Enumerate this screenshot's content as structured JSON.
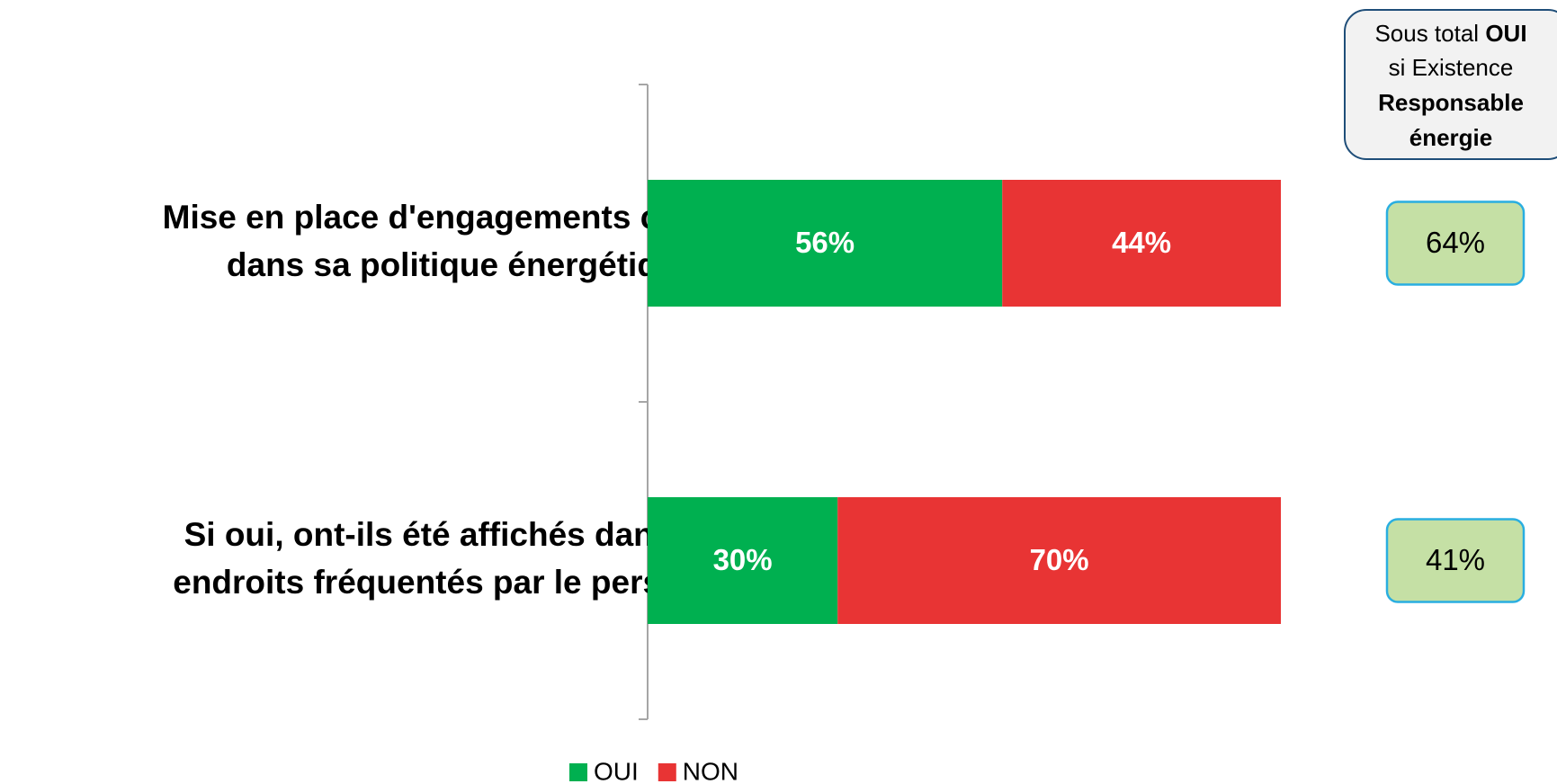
{
  "chart_data": {
    "type": "stacked_barh",
    "categories": [
      [
        "Mise en place d'engagements chiffrés",
        "dans sa politique énergétique"
      ],
      [
        "Si oui, ont-ils été affichés dans des",
        "endroits fréquentés par le personnel"
      ]
    ],
    "series": [
      {
        "name": "OUI",
        "color": "#00b050",
        "values": [
          56,
          30
        ],
        "value_labels": [
          "56%",
          "30%"
        ]
      },
      {
        "name": "NON",
        "color": "#e83434",
        "values": [
          44,
          70
        ],
        "value_labels": [
          "44%",
          "70%"
        ]
      }
    ],
    "xlim": [
      0,
      100
    ],
    "legend": "bottom",
    "subtotal": {
      "title": [
        "Sous total",
        "OUI",
        "si Existence",
        "Responsable",
        "énergie"
      ],
      "values": [
        64,
        41
      ],
      "value_labels": [
        "64%",
        "41%"
      ],
      "color": "#c5e0a5"
    }
  }
}
